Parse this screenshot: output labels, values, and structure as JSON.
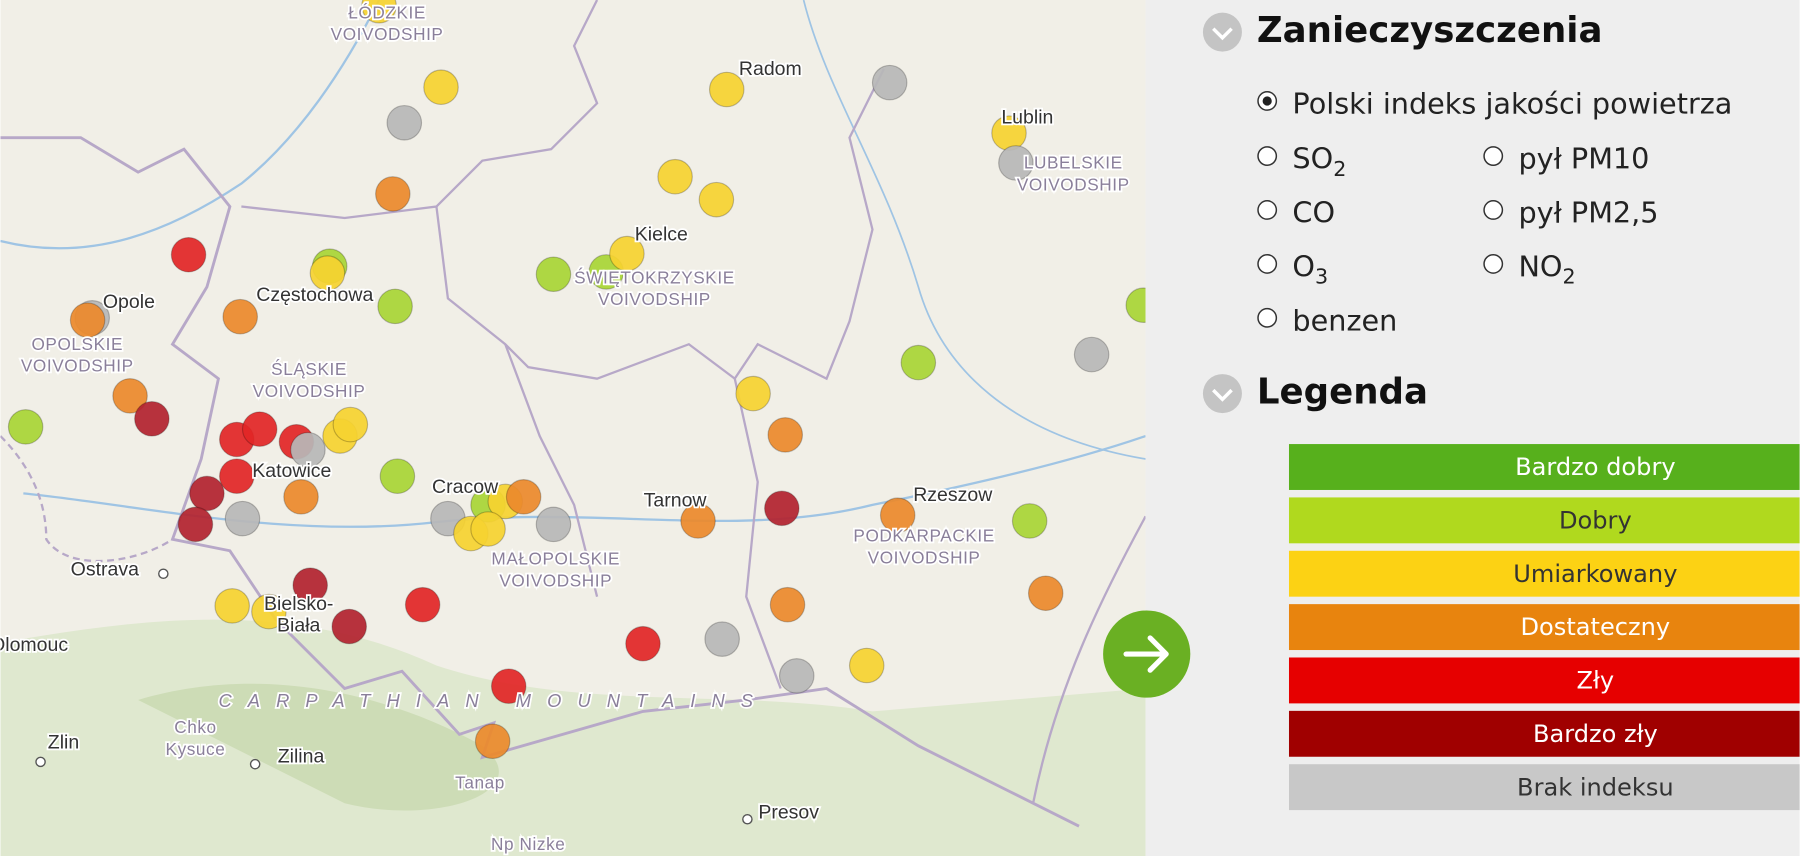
{
  "map": {
    "labels": [
      {
        "lines": [
          "ŁÓDZKIE",
          "VOIVODSHIP"
        ],
        "kind": "region"
      },
      {
        "lines": [
          "Radom"
        ],
        "kind": "city"
      },
      {
        "lines": [
          "Lublin"
        ],
        "kind": "city"
      },
      {
        "lines": [
          "LUBELSKIE",
          "VOIVODSHIP"
        ],
        "kind": "region"
      },
      {
        "lines": [
          "Kielce"
        ],
        "kind": "city"
      },
      {
        "lines": [
          "ŚWIĘTOKRZYSKIE",
          "VOIVODSHIP"
        ],
        "kind": "region"
      },
      {
        "lines": [
          "Opole"
        ],
        "kind": "city"
      },
      {
        "lines": [
          "Częstochowa"
        ],
        "kind": "city"
      },
      {
        "lines": [
          "OPOLSKIE",
          "VOIVODSHIP"
        ],
        "kind": "region"
      },
      {
        "lines": [
          "ŚLĄSKIE",
          "VOIVODSHIP"
        ],
        "kind": "region"
      },
      {
        "lines": [
          "Katowice"
        ],
        "kind": "city"
      },
      {
        "lines": [
          "Cracow"
        ],
        "kind": "city"
      },
      {
        "lines": [
          "Tarnow"
        ],
        "kind": "city"
      },
      {
        "lines": [
          "Rzeszow"
        ],
        "kind": "city"
      },
      {
        "lines": [
          "PODKARPACKIE",
          "VOIVODSHIP"
        ],
        "kind": "region"
      },
      {
        "lines": [
          "MAŁOPOLSKIE",
          "VOIVODSHIP"
        ],
        "kind": "region"
      },
      {
        "lines": [
          "Ostrava"
        ],
        "kind": "city"
      },
      {
        "lines": [
          "Bielsko-",
          "Biała"
        ],
        "kind": "city"
      },
      {
        "lines": [
          "Olomouc"
        ],
        "kind": "city"
      },
      {
        "lines": [
          "CARPATHIAN MOUNTAINS"
        ],
        "kind": "mountain"
      },
      {
        "lines": [
          "Chko",
          "Kysuce"
        ],
        "kind": "region"
      },
      {
        "lines": [
          "Zlin"
        ],
        "kind": "city"
      },
      {
        "lines": [
          "Zilina"
        ],
        "kind": "city"
      },
      {
        "lines": [
          "Tanap"
        ],
        "kind": "region"
      },
      {
        "lines": [
          "Presov"
        ],
        "kind": "city"
      },
      {
        "lines": [
          "Np Nizke"
        ],
        "kind": "region"
      }
    ]
  },
  "panel": {
    "title": "Zanieczyszczenia",
    "options": [
      {
        "text": "Polski indeks jakości powietrza",
        "selected": true
      },
      {
        "text": "SO",
        "sub": "2"
      },
      {
        "text": "pył PM10"
      },
      {
        "text": "CO"
      },
      {
        "text": "pył PM2,5"
      },
      {
        "text": "O",
        "sub": "3"
      },
      {
        "text": "NO",
        "sub": "2"
      },
      {
        "text": "benzen"
      }
    ],
    "legend_title": "Legenda",
    "legend": [
      {
        "label": "Bardzo dobry",
        "color": "#57b01c",
        "text_color": "#ffffff"
      },
      {
        "label": "Dobry",
        "color": "#b0d91e",
        "text_color": "#333333"
      },
      {
        "label": "Umiarkowany",
        "color": "#fcd214",
        "text_color": "#333333"
      },
      {
        "label": "Dostateczny",
        "color": "#e8840e",
        "text_color": "#ffffff"
      },
      {
        "label": "Zły",
        "color": "#e60000",
        "text_color": "#ffffff"
      },
      {
        "label": "Bardzo zły",
        "color": "#a00000",
        "text_color": "#ffffff"
      },
      {
        "label": "Brak indeksu",
        "color": "#c8c8c8",
        "text_color": "#333333"
      }
    ]
  }
}
